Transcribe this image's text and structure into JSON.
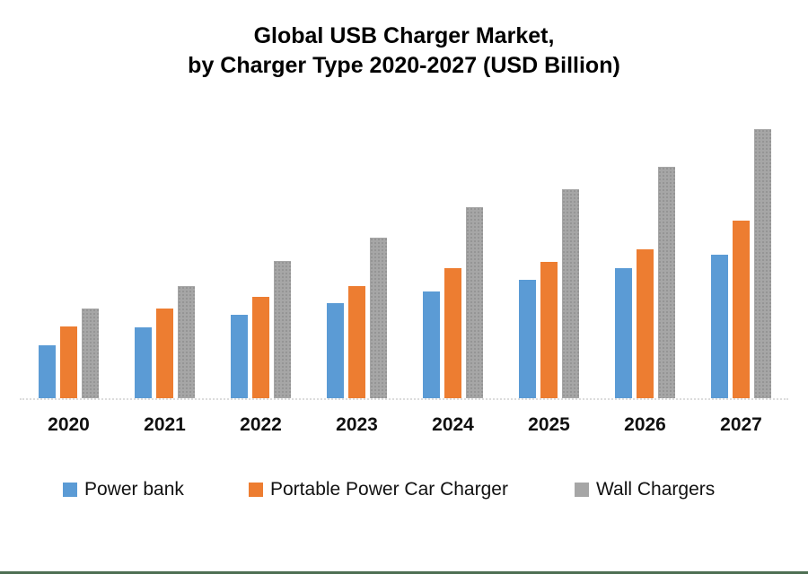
{
  "page": {
    "background": "#ffffff",
    "bottom_rule_color": "#4e6f53",
    "axis_line_color": "#dcdcdc"
  },
  "title": {
    "line1": "Global USB Charger Market,",
    "line2": "by Charger Type 2020-2027 (USD Billion)"
  },
  "chart_data": {
    "type": "bar",
    "title": "Global USB Charger Market, by Charger Type 2020-2027 (USD Billion)",
    "categories": [
      "2020",
      "2021",
      "2022",
      "2023",
      "2024",
      "2025",
      "2026",
      "2027"
    ],
    "series": [
      {
        "name": "Power bank",
        "color": "#5B9BD5",
        "pattern": "solid",
        "values": [
          5.9,
          7.9,
          9.3,
          10.6,
          11.9,
          13.2,
          14.5,
          16.0
        ]
      },
      {
        "name": "Portable Power Car Charger",
        "color": "#ED7D31",
        "pattern": "solid",
        "values": [
          8.0,
          10.0,
          11.3,
          12.5,
          14.5,
          15.2,
          16.6,
          19.8
        ]
      },
      {
        "name": "Wall Chargers",
        "color": "#A6A6A6",
        "pattern": "dots",
        "values": [
          10.0,
          12.5,
          15.3,
          17.9,
          21.3,
          23.3,
          25.8,
          30.0
        ]
      }
    ],
    "xlabel": "",
    "ylabel": "",
    "value_unit": "USD Billion",
    "ylim": [
      0,
      30
    ],
    "grid": false,
    "y_axis_visible": false,
    "legend_position": "bottom"
  }
}
